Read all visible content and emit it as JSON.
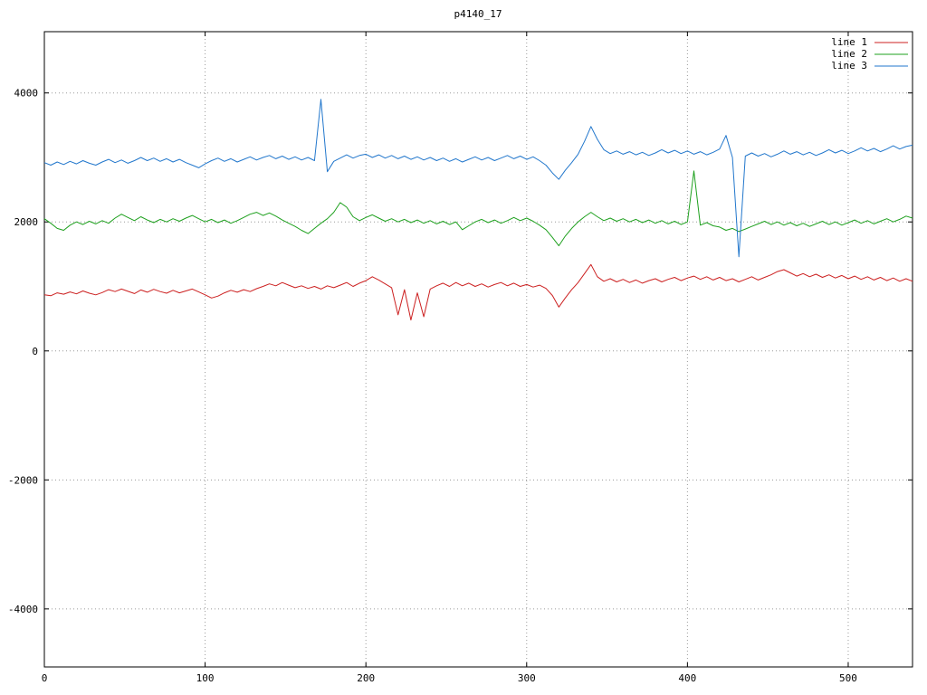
{
  "title": "p4140_17",
  "chart_data": {
    "type": "line",
    "title": "p4140_17",
    "xlabel": "",
    "ylabel": "",
    "xlim": [
      0,
      540
    ],
    "ylim": [
      -4900,
      4950
    ],
    "x_ticks": [
      0,
      100,
      200,
      300,
      400,
      500
    ],
    "y_ticks": [
      -4000,
      -2000,
      0,
      2000,
      4000
    ],
    "grid": true,
    "legend_position": "top-right-inside",
    "x_start": 0,
    "x_step": 4,
    "style": {
      "grid_color": "#9a9a9a",
      "axis_color": "#000000",
      "background": "#ffffff"
    },
    "series": [
      {
        "name": "line 1",
        "color": "#cc2020",
        "values": [
          870,
          855,
          900,
          880,
          915,
          885,
          930,
          895,
          870,
          905,
          950,
          920,
          960,
          925,
          890,
          945,
          910,
          955,
          920,
          895,
          940,
          900,
          930,
          960,
          915,
          870,
          820,
          850,
          900,
          940,
          910,
          950,
          920,
          965,
          1000,
          1040,
          1010,
          1060,
          1020,
          980,
          1010,
          970,
          1000,
          960,
          1010,
          980,
          1020,
          1060,
          1000,
          1050,
          1090,
          1150,
          1100,
          1040,
          980,
          560,
          950,
          480,
          900,
          530,
          960,
          1010,
          1050,
          1000,
          1060,
          1010,
          1050,
          1000,
          1040,
          990,
          1030,
          1060,
          1010,
          1050,
          1000,
          1030,
          990,
          1020,
          970,
          860,
          680,
          820,
          950,
          1060,
          1200,
          1340,
          1150,
          1080,
          1120,
          1070,
          1110,
          1060,
          1100,
          1050,
          1090,
          1120,
          1070,
          1110,
          1140,
          1090,
          1130,
          1160,
          1110,
          1150,
          1100,
          1140,
          1090,
          1120,
          1070,
          1110,
          1150,
          1100,
          1140,
          1180,
          1230,
          1260,
          1210,
          1160,
          1200,
          1150,
          1190,
          1140,
          1180,
          1130,
          1170,
          1120,
          1160,
          1110,
          1150,
          1100,
          1140,
          1090,
          1130,
          1080,
          1120,
          1080
        ]
      },
      {
        "name": "line 2",
        "color": "#1ea01e",
        "values": [
          2050,
          1980,
          1900,
          1870,
          1950,
          2000,
          1960,
          2010,
          1970,
          2020,
          1980,
          2060,
          2120,
          2070,
          2020,
          2080,
          2030,
          1990,
          2040,
          2000,
          2050,
          2010,
          2060,
          2100,
          2050,
          2000,
          2040,
          1990,
          2030,
          1980,
          2020,
          2070,
          2120,
          2150,
          2100,
          2140,
          2090,
          2030,
          1980,
          1930,
          1870,
          1820,
          1900,
          1980,
          2050,
          2150,
          2300,
          2230,
          2080,
          2020,
          2070,
          2110,
          2060,
          2010,
          2050,
          2000,
          2040,
          1990,
          2030,
          1980,
          2020,
          1970,
          2010,
          1960,
          2000,
          1880,
          1940,
          2000,
          2040,
          1990,
          2030,
          1980,
          2020,
          2070,
          2020,
          2060,
          2010,
          1950,
          1880,
          1760,
          1630,
          1780,
          1900,
          2000,
          2080,
          2150,
          2080,
          2020,
          2060,
          2010,
          2050,
          2000,
          2040,
          1990,
          2030,
          1980,
          2020,
          1970,
          2010,
          1960,
          2000,
          2790,
          1950,
          1990,
          1940,
          1920,
          1870,
          1900,
          1850,
          1890,
          1930,
          1970,
          2010,
          1960,
          2000,
          1950,
          1990,
          1940,
          1980,
          1930,
          1970,
          2010,
          1960,
          2000,
          1950,
          1990,
          2030,
          1980,
          2020,
          1970,
          2010,
          2050,
          2000,
          2040,
          2090,
          2060
        ]
      },
      {
        "name": "line 3",
        "color": "#2277cc",
        "values": [
          2920,
          2880,
          2930,
          2890,
          2940,
          2900,
          2950,
          2910,
          2880,
          2930,
          2970,
          2920,
          2960,
          2910,
          2950,
          3000,
          2950,
          2990,
          2940,
          2980,
          2930,
          2970,
          2920,
          2880,
          2840,
          2900,
          2950,
          2990,
          2940,
          2980,
          2930,
          2970,
          3010,
          2960,
          3000,
          3030,
          2980,
          3020,
          2970,
          3010,
          2960,
          3000,
          2950,
          3900,
          2780,
          2940,
          2990,
          3040,
          2990,
          3030,
          3050,
          3000,
          3040,
          2990,
          3030,
          2980,
          3020,
          2970,
          3010,
          2960,
          3000,
          2950,
          2990,
          2940,
          2980,
          2930,
          2970,
          3010,
          2960,
          3000,
          2950,
          2990,
          3030,
          2980,
          3020,
          2970,
          3010,
          2950,
          2880,
          2760,
          2660,
          2800,
          2920,
          3050,
          3250,
          3480,
          3280,
          3120,
          3060,
          3100,
          3050,
          3090,
          3040,
          3080,
          3030,
          3070,
          3120,
          3070,
          3110,
          3060,
          3100,
          3050,
          3090,
          3040,
          3080,
          3130,
          3340,
          3000,
          1460,
          3020,
          3070,
          3020,
          3060,
          3010,
          3050,
          3100,
          3050,
          3090,
          3040,
          3080,
          3030,
          3070,
          3120,
          3070,
          3110,
          3060,
          3100,
          3150,
          3100,
          3140,
          3090,
          3130,
          3180,
          3130,
          3170,
          3190
        ]
      }
    ]
  }
}
